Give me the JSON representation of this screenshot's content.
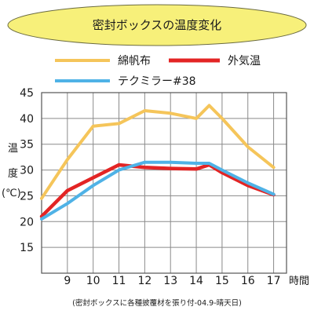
{
  "chart_data": {
    "type": "line",
    "title": "密封ボックスの温度変化",
    "xlabel": "時間",
    "ylabel": "温度(℃)",
    "ylabel_chars": [
      "温",
      "度",
      "(℃)"
    ],
    "x": [
      8,
      9,
      10,
      11,
      12,
      13,
      14,
      14.5,
      15,
      16,
      17
    ],
    "x_ticks": [
      9,
      10,
      11,
      12,
      13,
      14,
      15,
      16,
      17
    ],
    "xlim": [
      8,
      17.5
    ],
    "ylim": [
      10,
      45
    ],
    "y_ticks": [
      15,
      20,
      25,
      30,
      35,
      40,
      45
    ],
    "grid": true,
    "legend_position": "top",
    "series": [
      {
        "name": "綿帆布",
        "color": "#f5c55a",
        "values": [
          24.5,
          32,
          38.5,
          39,
          41.5,
          41,
          40,
          42.5,
          40,
          34.5,
          30.5
        ]
      },
      {
        "name": "外気温",
        "color": "#e32424",
        "values": [
          21,
          26,
          28.5,
          31,
          30.5,
          30.3,
          30.2,
          31,
          29.5,
          27,
          25.2
        ]
      },
      {
        "name": "テクミラー#38",
        "color": "#4fb2e6",
        "values": [
          20.5,
          23.5,
          27,
          30,
          31.5,
          31.5,
          31.3,
          31.3,
          30,
          27.5,
          25.3
        ]
      }
    ],
    "footnote": "(密封ボックスに各種披覆材を張り付-04.9-晴天日)"
  },
  "colors": {
    "title_fill": "#f7f07a",
    "title_stroke": "#6b6b40",
    "grid": "#8a8a8a",
    "axis": "#555555"
  }
}
